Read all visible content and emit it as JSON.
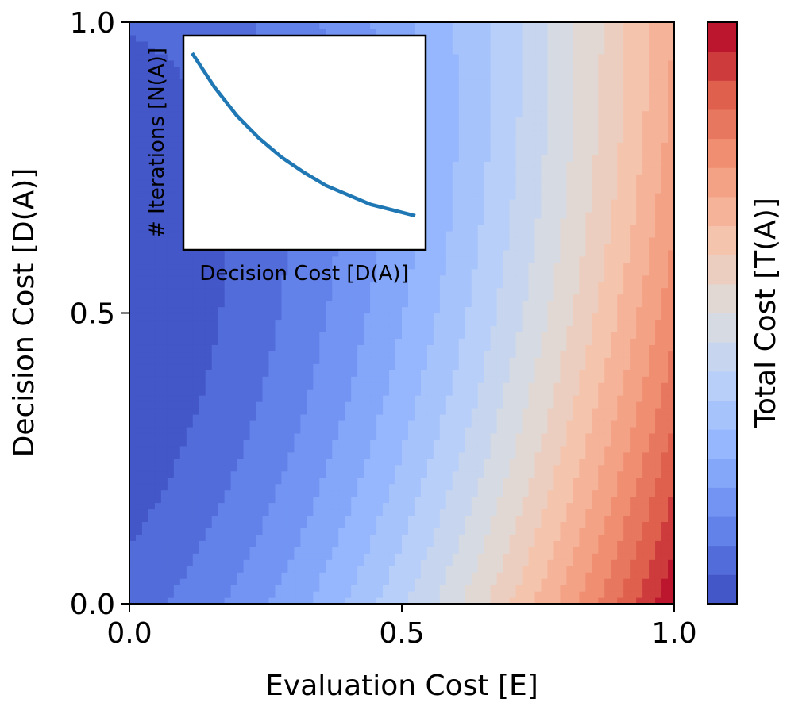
{
  "chart_data": [
    {
      "type": "contour",
      "title": "",
      "xlabel": "Evaluation Cost [E]",
      "ylabel": "Decision Cost [D(A)]",
      "xlim": [
        0.0,
        1.0
      ],
      "ylim": [
        0.0,
        1.0
      ],
      "xticks": [
        "0.0",
        "0.5",
        "1.0"
      ],
      "yticks": [
        "0.0",
        "0.5",
        "1.0"
      ],
      "x": [
        0.0,
        0.5,
        1.0
      ],
      "y": [
        0.0,
        0.5,
        1.0
      ],
      "levels": 20,
      "colormap": "coolwarm",
      "colorbar_label": "Total Cost [T(A)]",
      "grid": false,
      "legend": "none",
      "trend": "total cost lowest near E=0, D(A) between 0.4 and 1.0; highest at E=1, D(A)=0"
    },
    {
      "type": "line",
      "title": "",
      "xlabel": "Decision Cost [D(A)]",
      "ylabel": "# Iterations [N(A)]",
      "ticks": "hidden",
      "placement": "inset top-left",
      "x": [
        0.0,
        0.1,
        0.2,
        0.3,
        0.4,
        0.5,
        0.6,
        0.7,
        0.8,
        0.9,
        1.0
      ],
      "series": [
        {
          "name": "N(A)",
          "color": "#1f77b4",
          "values": [
            1.0,
            0.82,
            0.67,
            0.55,
            0.45,
            0.37,
            0.3,
            0.25,
            0.2,
            0.17,
            0.14
          ]
        }
      ]
    }
  ]
}
